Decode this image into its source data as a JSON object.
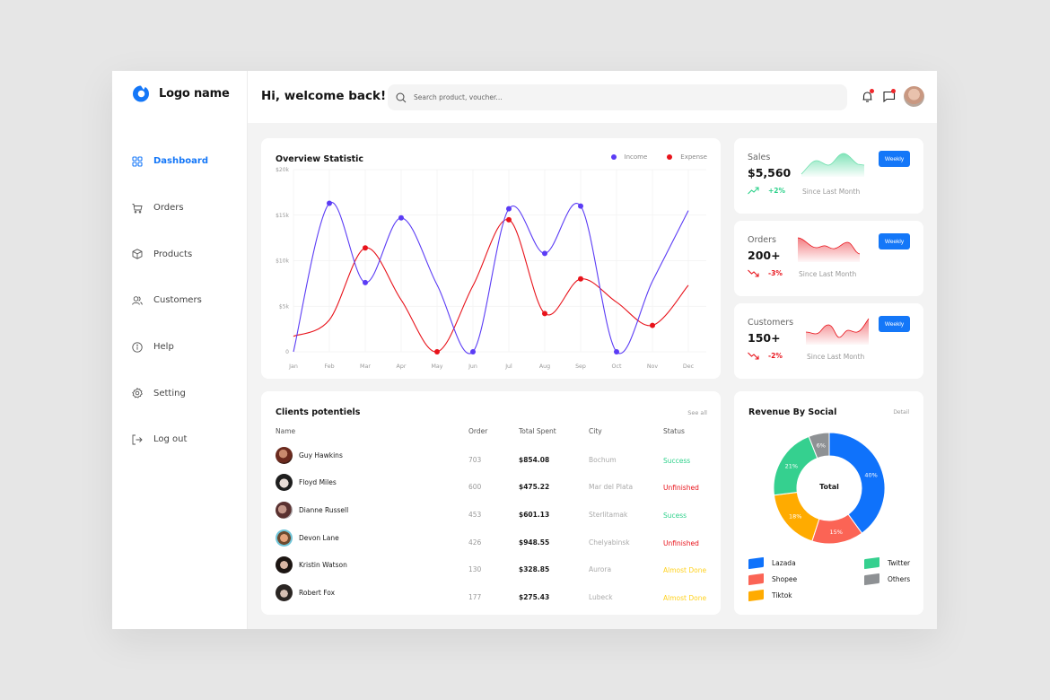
{
  "app": {
    "logo_text": "Logo name",
    "welcome": "Hi, welcome back!",
    "brand_color": "#1477f8"
  },
  "search": {
    "placeholder": "Search product, voucher...",
    "value": ""
  },
  "sidebar": {
    "items": [
      {
        "label": "Dashboard",
        "icon": "grid-icon",
        "active": true
      },
      {
        "label": "Orders",
        "icon": "cart-icon",
        "active": false
      },
      {
        "label": "Products",
        "icon": "box-icon",
        "active": false
      },
      {
        "label": "Customers",
        "icon": "users-icon",
        "active": false
      },
      {
        "label": "Help",
        "icon": "info-icon",
        "active": false
      },
      {
        "label": "Setting",
        "icon": "gear-icon",
        "active": false
      },
      {
        "label": "Log out",
        "icon": "logout-icon",
        "active": false
      }
    ]
  },
  "header_icons": {
    "notification": "bell-icon",
    "messages": "message-icon",
    "avatar": "user-avatar"
  },
  "overview": {
    "title": "Overview Statistic",
    "legend": [
      {
        "label": "Income",
        "color": "#5b3cf5"
      },
      {
        "label": "Expense",
        "color": "#e8131b"
      }
    ]
  },
  "chart_data": {
    "type": "line",
    "title": "Overview Statistic",
    "categories": [
      "Jan",
      "Feb",
      "Mar",
      "Apr",
      "May",
      "Jun",
      "Jul",
      "Aug",
      "Sep",
      "Oct",
      "Nov",
      "Dec"
    ],
    "yticks": [
      "$20k",
      "$15k",
      "$10k",
      "$5k",
      "0"
    ],
    "ylim": [
      0,
      20000
    ],
    "grid": true,
    "legend_position": "top-right",
    "smooth": true,
    "series": [
      {
        "name": "Income",
        "color": "#5b3cf5",
        "values": [
          0,
          16300,
          7600,
          14700,
          null,
          0,
          15700,
          10800,
          16000,
          0,
          null,
          15500
        ],
        "marked": [
          1,
          2,
          3,
          5,
          6,
          7,
          8,
          9
        ]
      },
      {
        "name": "Expense",
        "color": "#e8131b",
        "values": [
          1700,
          3500,
          11400,
          null,
          0,
          null,
          14500,
          4200,
          8000,
          null,
          2900,
          7300
        ],
        "marked": [
          2,
          4,
          6,
          7,
          8,
          10
        ]
      }
    ]
  },
  "stats": [
    {
      "label": "Sales",
      "value": "$5,560",
      "change": "+2%",
      "direction": "up",
      "since": "Since Last Month",
      "button": "Weekly",
      "color": "#2ed18b"
    },
    {
      "label": "Orders",
      "value": "200+",
      "change": "-3%",
      "direction": "down",
      "since": "Since Last Month",
      "button": "Weekly",
      "color": "#e8131b"
    },
    {
      "label": "Customers",
      "value": "150+",
      "change": "-2%",
      "direction": "down",
      "since": "Since Last Month",
      "button": "Weekly",
      "color": "#e8131b"
    }
  ],
  "clients": {
    "title": "Clients potentiels",
    "see_all": "See all",
    "columns": [
      "Name",
      "Order",
      "Total Spent",
      "City",
      "Status"
    ],
    "rows": [
      {
        "name": "Guy Hawkins",
        "order": "703",
        "spent": "$854.08",
        "city": "Bochum",
        "status": "Success",
        "status_color": "#2ed18b"
      },
      {
        "name": "Floyd Miles",
        "order": "600",
        "spent": "$475.22",
        "city": "Mar del Plata",
        "status": "Unfinished",
        "status_color": "#e8131b"
      },
      {
        "name": "Dianne Russell",
        "order": "453",
        "spent": "$601.13",
        "city": "Sterlitamak",
        "status": "Sucess",
        "status_color": "#2ed18b"
      },
      {
        "name": "Devon Lane",
        "order": "426",
        "spent": "$948.55",
        "city": "Chelyabinsk",
        "status": "Unfinished",
        "status_color": "#e8131b"
      },
      {
        "name": "Kristin Watson",
        "order": "130",
        "spent": "$328.85",
        "city": "Aurora",
        "status": "Almost Done",
        "status_color": "#ffd21f"
      },
      {
        "name": "Robert Fox",
        "order": "177",
        "spent": "$275.43",
        "city": "Lubeck",
        "status": "Almost Done",
        "status_color": "#ffd21f"
      }
    ]
  },
  "revenue": {
    "title": "Revenue By Social",
    "detail": "Detail",
    "center_label": "Total",
    "segments": [
      {
        "label": "Lazada",
        "value": 40,
        "display": "40%",
        "color": "#0f72fb"
      },
      {
        "label": "Shopee",
        "value": 15,
        "display": "15%",
        "color": "#fb6455"
      },
      {
        "label": "Tiktok",
        "value": 18,
        "display": "18%",
        "color": "#ffab00"
      },
      {
        "label": "Twitter",
        "value": 21,
        "display": "21%",
        "color": "#35d08f"
      },
      {
        "label": "Others",
        "value": 6,
        "display": "6%",
        "color": "#8e9194"
      }
    ]
  }
}
